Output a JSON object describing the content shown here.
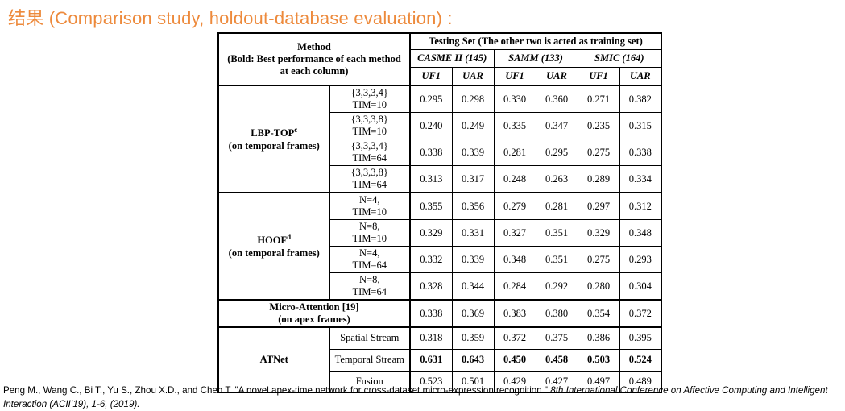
{
  "page": {
    "title": "结果 (Comparison study, holdout-database evaluation) :",
    "title_color": "#ED8A3C"
  },
  "table": {
    "method_header": [
      "Method",
      "(Bold: Best performance of each method",
      "at each column)"
    ],
    "testing_set_header": "Testing Set (The other two is acted as training set)",
    "datasets": [
      "CASME II (145)",
      "SAMM (133)",
      "SMIC (164)"
    ],
    "metrics": [
      "UF1",
      "UAR"
    ],
    "groups": [
      {
        "method": "LBP-TOP",
        "method_sup": "c",
        "method_sub": "(on temporal frames)",
        "rows": [
          {
            "config": [
              "{3,3,3,4}",
              "TIM=10"
            ],
            "values": [
              "0.295",
              "0.298",
              "0.330",
              "0.360",
              "0.271",
              "0.382"
            ],
            "bold": false
          },
          {
            "config": [
              "{3,3,3,8}",
              "TIM=10"
            ],
            "values": [
              "0.240",
              "0.249",
              "0.335",
              "0.347",
              "0.235",
              "0.315"
            ],
            "bold": false
          },
          {
            "config": [
              "{3,3,3,4}",
              "TIM=64"
            ],
            "values": [
              "0.338",
              "0.339",
              "0.281",
              "0.295",
              "0.275",
              "0.338"
            ],
            "bold": false
          },
          {
            "config": [
              "{3,3,3,8}",
              "TIM=64"
            ],
            "values": [
              "0.313",
              "0.317",
              "0.248",
              "0.263",
              "0.289",
              "0.334"
            ],
            "bold": false
          }
        ]
      },
      {
        "method": "HOOF",
        "method_sup": "d",
        "method_sub": "(on temporal frames)",
        "rows": [
          {
            "config": [
              "N=4,",
              "TIM=10"
            ],
            "values": [
              "0.355",
              "0.356",
              "0.279",
              "0.281",
              "0.297",
              "0.312"
            ],
            "bold": false
          },
          {
            "config": [
              "N=8,",
              "TIM=10"
            ],
            "values": [
              "0.329",
              "0.331",
              "0.327",
              "0.351",
              "0.329",
              "0.348"
            ],
            "bold": false
          },
          {
            "config": [
              "N=4,",
              "TIM=64"
            ],
            "values": [
              "0.332",
              "0.339",
              "0.348",
              "0.351",
              "0.275",
              "0.293"
            ],
            "bold": false
          },
          {
            "config": [
              "N=8,",
              "TIM=64"
            ],
            "values": [
              "0.328",
              "0.344",
              "0.284",
              "0.292",
              "0.280",
              "0.304"
            ],
            "bold": false
          }
        ]
      },
      {
        "method": "Micro-Attention [19]",
        "method_sup": "",
        "method_sub": "(on apex frames)",
        "rows": [
          {
            "config": null,
            "values": [
              "0.338",
              "0.369",
              "0.383",
              "0.380",
              "0.354",
              "0.372"
            ],
            "bold": false
          }
        ]
      },
      {
        "method": "ATNet",
        "method_sup": "",
        "method_sub": "",
        "rows": [
          {
            "config": [
              "Spatial Stream"
            ],
            "values": [
              "0.318",
              "0.359",
              "0.372",
              "0.375",
              "0.386",
              "0.395"
            ],
            "bold": false
          },
          {
            "config": [
              "Temporal Stream"
            ],
            "values": [
              "0.631",
              "0.643",
              "0.450",
              "0.458",
              "0.503",
              "0.524"
            ],
            "bold": true
          },
          {
            "config": [
              "Fusion"
            ],
            "values": [
              "0.523",
              "0.501",
              "0.429",
              "0.427",
              "0.497",
              "0.489"
            ],
            "bold": false
          }
        ]
      }
    ]
  },
  "footer": {
    "citation_regular": "Peng M., Wang C., Bi T., Yu S., Zhou X.D., and Chen T. \"A novel apex-time network for cross-dataset micro-expression recognition.\" ",
    "citation_italic": "8th International Conference on Affective Computing and Intelligent Interaction (ACII’19), 1-6, (2019)."
  }
}
